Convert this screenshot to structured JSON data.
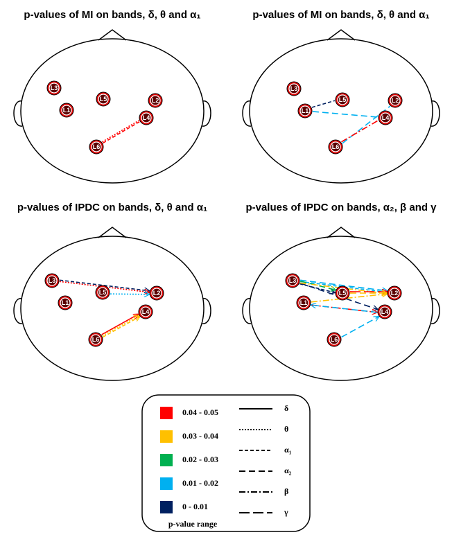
{
  "nodes": [
    "L1",
    "L2",
    "L3",
    "L4",
    "L5",
    "L6"
  ],
  "panels": [
    {
      "title": "p-values of MI on bands, δ, θ and α₁",
      "edges": [
        {
          "from": 5,
          "to": 3,
          "color": 0,
          "style": 1,
          "arrow": false
        },
        {
          "from": 5,
          "to": 3,
          "color": 0,
          "style": 2,
          "arrow": false
        }
      ]
    },
    {
      "title": "p-values of MI on bands, δ, θ and α₁",
      "edges": [
        {
          "from": 0,
          "to": 4,
          "color": 4,
          "style": 2,
          "arrow": false
        },
        {
          "from": 0,
          "to": 3,
          "color": 3,
          "style": 3,
          "arrow": false
        },
        {
          "from": 5,
          "to": 1,
          "color": 3,
          "style": 3,
          "arrow": false
        },
        {
          "from": 5,
          "to": 3,
          "color": 0,
          "style": 4,
          "arrow": false
        }
      ]
    },
    {
      "title": "p-values of IPDC on bands, δ, θ and α₁",
      "edges": [
        {
          "from": 2,
          "to": 1,
          "color": 4,
          "style": 2,
          "arrow": true
        },
        {
          "from": 2,
          "to": 1,
          "color": 0,
          "style": 1,
          "arrow": true
        },
        {
          "from": 4,
          "to": 1,
          "color": 3,
          "style": 1,
          "arrow": true
        },
        {
          "from": 5,
          "to": 3,
          "color": 0,
          "style": 0,
          "arrow": true
        },
        {
          "from": 5,
          "to": 3,
          "color": 1,
          "style": 1,
          "arrow": true
        },
        {
          "from": 5,
          "to": 3,
          "color": 1,
          "style": 2,
          "arrow": true
        }
      ]
    },
    {
      "title": "p-values of IPDC on bands, α₂, β and γ",
      "edges": [
        {
          "from": 2,
          "to": 1,
          "color": 3,
          "style": 3,
          "arrow": true
        },
        {
          "from": 2,
          "to": 1,
          "color": 3,
          "style": 2,
          "arrow": true
        },
        {
          "from": 2,
          "to": 4,
          "color": 4,
          "style": 2,
          "arrow": true
        },
        {
          "from": 2,
          "to": 4,
          "color": 2,
          "style": 3,
          "arrow": true
        },
        {
          "from": 2,
          "to": 3,
          "color": 4,
          "style": 3,
          "arrow": true
        },
        {
          "from": 2,
          "to": 1,
          "color": 1,
          "style": 4,
          "arrow": true
        },
        {
          "from": 4,
          "to": 1,
          "color": 0,
          "style": 5,
          "arrow": true
        },
        {
          "from": 4,
          "to": 1,
          "color": 1,
          "style": 3,
          "arrow": true
        },
        {
          "from": 0,
          "to": 3,
          "color": 0,
          "style": 4,
          "arrow": true
        },
        {
          "from": 3,
          "to": 0,
          "color": 3,
          "style": 3,
          "arrow": true
        },
        {
          "from": 0,
          "to": 1,
          "color": 1,
          "style": 4,
          "arrow": true
        },
        {
          "from": 5,
          "to": 3,
          "color": 3,
          "style": 3,
          "arrow": true
        }
      ]
    }
  ],
  "legend": {
    "colors": [
      {
        "color": "#ff0000",
        "label": "0.04 - 0.05"
      },
      {
        "color": "#ffc000",
        "label": "0.03 - 0.04"
      },
      {
        "color": "#00b050",
        "label": "0.02 - 0.03"
      },
      {
        "color": "#00b0f0",
        "label": "0.01 - 0.02"
      },
      {
        "color": "#002060",
        "label": "0 - 0.01"
      }
    ],
    "styles": [
      "δ",
      "θ",
      "α₁",
      "α₂",
      "β",
      "γ"
    ],
    "footer": "p-value range"
  }
}
